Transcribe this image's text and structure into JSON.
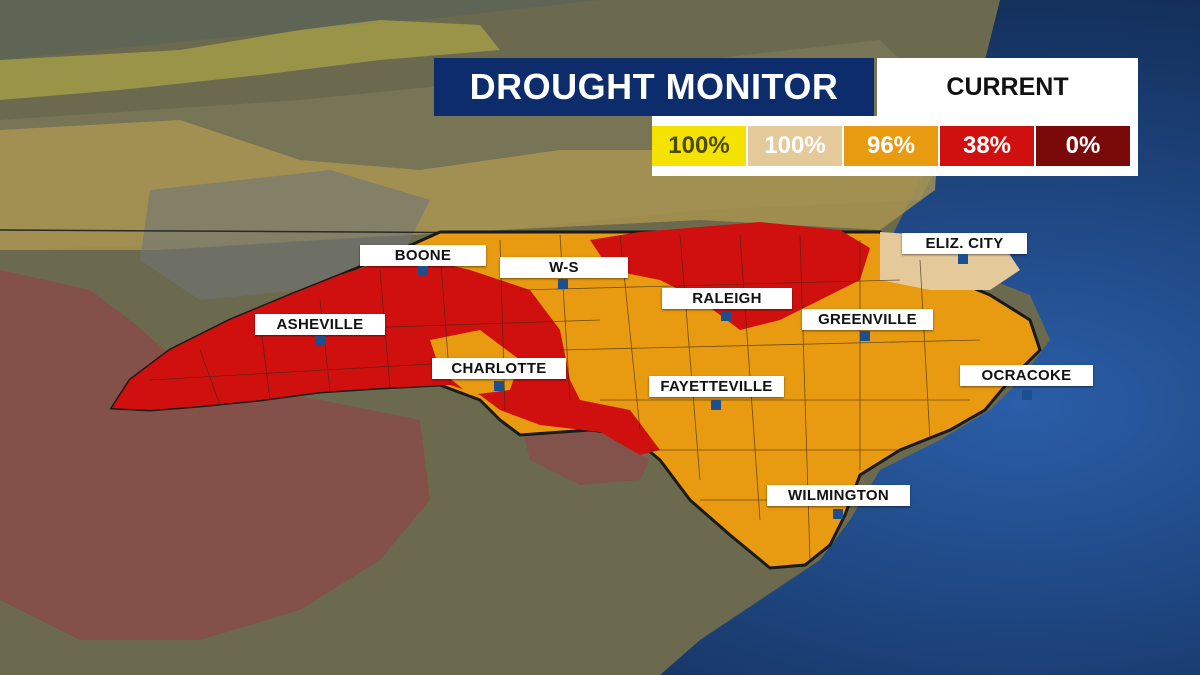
{
  "title": "DROUGHT MONITOR",
  "period": "CURRENT",
  "legend": [
    {
      "value": "100%",
      "color": "#f4e300",
      "text_color": "#4a4a00"
    },
    {
      "value": "100%",
      "color": "#e4c99b",
      "text_color": "#ffffff"
    },
    {
      "value": "96%",
      "color": "#e89a10",
      "text_color": "#ffffff"
    },
    {
      "value": "38%",
      "color": "#d0100f",
      "text_color": "#ffffff"
    },
    {
      "value": "0%",
      "color": "#7a0a0a",
      "text_color": "#ffffff"
    }
  ],
  "cities": [
    {
      "name": "BOONE"
    },
    {
      "name": "W-S"
    },
    {
      "name": "RALEIGH"
    },
    {
      "name": "ELIZ. CITY"
    },
    {
      "name": "ASHEVILLE"
    },
    {
      "name": "GREENVILLE"
    },
    {
      "name": "CHARLOTTE"
    },
    {
      "name": "FAYETTEVILLE"
    },
    {
      "name": "OCRACOKE"
    },
    {
      "name": "WILMINGTON"
    }
  ],
  "colors": {
    "ocean": "#1b3a6b",
    "land": "#6e6a4c",
    "abnormally_dry": "#b9a35c",
    "moderate": "#e89a10",
    "severe": "#d0100f",
    "extreme_overlay": "#8a3a3a"
  }
}
